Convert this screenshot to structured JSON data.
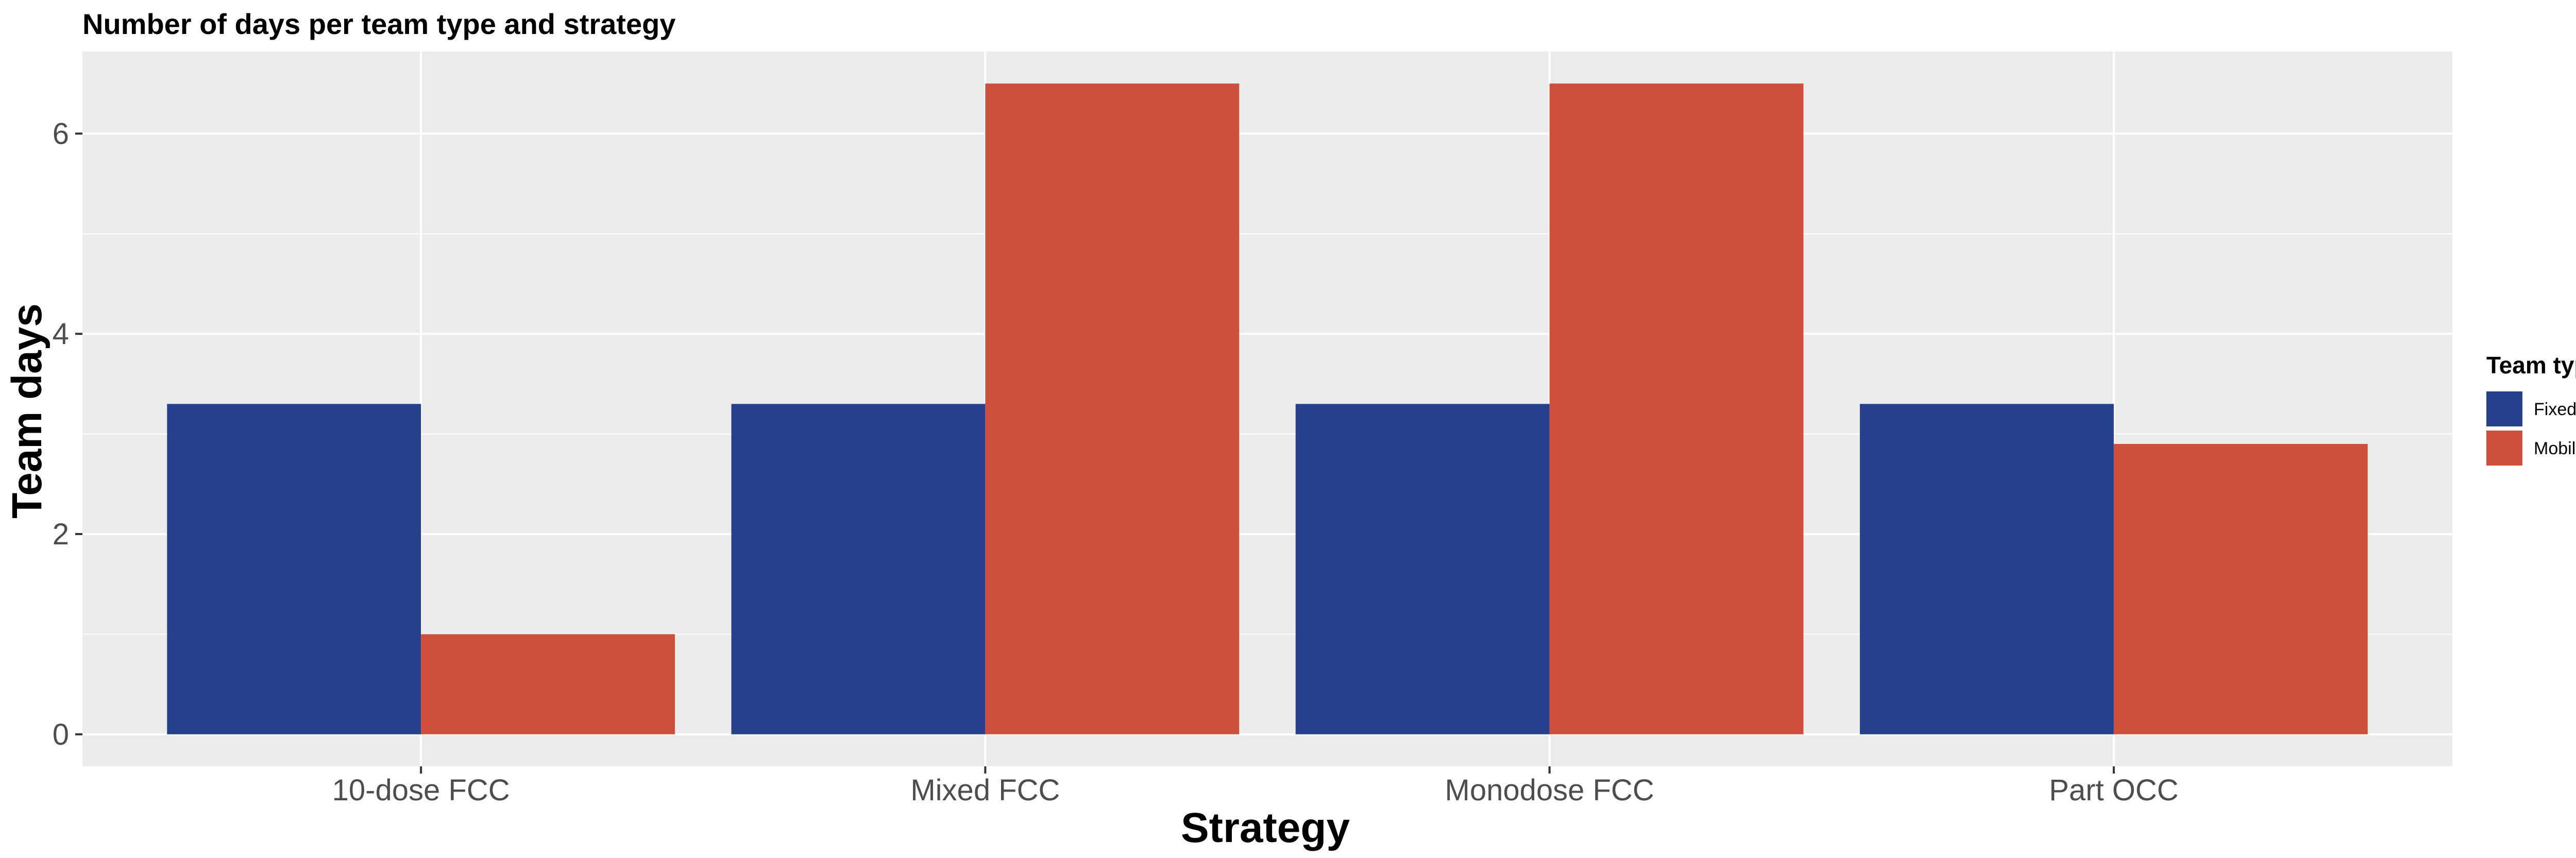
{
  "chart_data": {
    "type": "bar",
    "title": "Number of days per team type and strategy",
    "xlabel": "Strategy",
    "ylabel": "Team days",
    "categories": [
      "10-dose FCC",
      "Mixed FCC",
      "Monodose FCC",
      "Part OCC"
    ],
    "series": [
      {
        "name": "Fixed post",
        "color": "#26408b",
        "values": [
          3.3,
          3.3,
          3.3,
          3.3
        ]
      },
      {
        "name": "Mobile team",
        "color": "#cd4f3c",
        "values": [
          1.0,
          6.5,
          6.5,
          2.9
        ]
      }
    ],
    "ylim": [
      -0.32,
      6.82
    ],
    "yticks": [
      0,
      2,
      4,
      6
    ],
    "grid": true,
    "legend": {
      "title": "Team type",
      "placement": "right"
    },
    "colors": {
      "panel": "#ebebeb",
      "grid": "#ffffff"
    }
  }
}
